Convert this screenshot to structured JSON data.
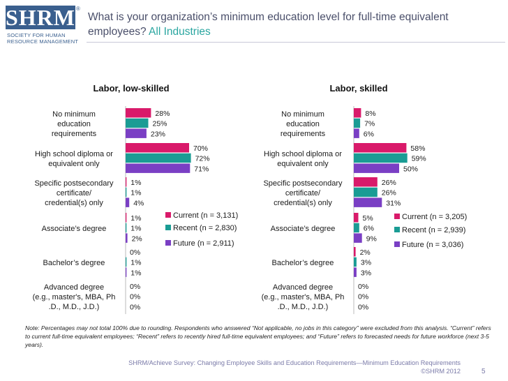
{
  "logo": {
    "text": "SHRM",
    "registered": "®",
    "subtitle_line1": "Society for Human",
    "subtitle_line2": "Resource Management"
  },
  "title": {
    "main": "What is your organization’s minimum education level for full-time equivalent employees?",
    "subtitle": "All Industries"
  },
  "colors": {
    "current": "#d91a6a",
    "recent": "#1a9c94",
    "future": "#7a3fc4"
  },
  "chart_data": [
    {
      "type": "bar",
      "orientation": "horizontal",
      "title": "Labor, low-skilled",
      "categories": [
        "No minimum education requirements",
        "High school diploma or equivalent only",
        "Specific postsecondary certificate/ credential(s) only",
        "Associate’s degree",
        "Bachelor’s degree",
        "Advanced degree (e.g., master's, MBA, Ph.D., M.D., J.D.)"
      ],
      "category_lines": [
        [
          "No minimum",
          "education",
          "requirements"
        ],
        [
          "High school diploma or",
          "equivalent only"
        ],
        [
          "Specific postsecondary",
          "certificate/",
          "credential(s) only"
        ],
        [
          "Associate’s degree"
        ],
        [
          "Bachelor’s degree"
        ],
        [
          "Advanced degree",
          "(e.g., master's, MBA, Ph",
          ".D., M.D., J.D.)"
        ]
      ],
      "series": [
        {
          "name": "Current (n = 3,131)",
          "color": "#d91a6a",
          "values": [
            28,
            70,
            1,
            1,
            0,
            0
          ],
          "labels": [
            "28%",
            "70%",
            "1%",
            "1%",
            "0%",
            "0%"
          ]
        },
        {
          "name": "Recent (n = 2,830)",
          "color": "#1a9c94",
          "values": [
            25,
            72,
            1,
            1,
            1,
            0
          ],
          "labels": [
            "25%",
            "72%",
            "1%",
            "1%",
            "1%",
            "0%"
          ]
        },
        {
          "name": "Future (n = 2,911)",
          "color": "#7a3fc4",
          "values": [
            23,
            71,
            4,
            2,
            1,
            0
          ],
          "labels": [
            "23%",
            "71%",
            "4%",
            "2%",
            "1%",
            "0%"
          ]
        }
      ],
      "xlim": [
        0,
        100
      ]
    },
    {
      "type": "bar",
      "orientation": "horizontal",
      "title": "Labor, skilled",
      "categories": [
        "No minimum education requirements",
        "High school diploma or equivalent only",
        "Specific postsecondary certificate/ credential(s) only",
        "Associate’s degree",
        "Bachelor’s degree",
        "Advanced degree (e.g., master's, MBA, Ph.D., M.D., J.D.)"
      ],
      "category_lines": [
        [
          "No minimum",
          "education",
          "requirements"
        ],
        [
          "High school diploma or",
          "equivalent only"
        ],
        [
          "Specific postsecondary",
          "certificate/",
          "credential(s) only"
        ],
        [
          "Associate’s degree"
        ],
        [
          "Bachelor’s degree"
        ],
        [
          "Advanced degree",
          "(e.g., master's, MBA, Ph",
          ".D., M.D., J.D.)"
        ]
      ],
      "series": [
        {
          "name": "Current (n = 3,205)",
          "color": "#d91a6a",
          "values": [
            8,
            58,
            26,
            5,
            2,
            0
          ],
          "labels": [
            "8%",
            "58%",
            "26%",
            "5%",
            "2%",
            "0%"
          ]
        },
        {
          "name": "Recent (n = 2,939)",
          "color": "#1a9c94",
          "values": [
            7,
            59,
            26,
            6,
            3,
            0
          ],
          "labels": [
            "7%",
            "59%",
            "26%",
            "6%",
            "3%",
            "0%"
          ]
        },
        {
          "name": "Future (n = 3,036)",
          "color": "#7a3fc4",
          "values": [
            6,
            50,
            31,
            9,
            3,
            0
          ],
          "labels": [
            "6%",
            "50%",
            "31%",
            "9%",
            "3%",
            "0%"
          ]
        }
      ],
      "xlim": [
        0,
        100
      ]
    }
  ],
  "note": "Note: Percentages may not total 100% due to rounding. Respondents who answered “Not applicable, no jobs in this category” were excluded from this analysis. “Current” refers to current full-time equivalent employees; “Recent” refers to recently hired full-time equivalent employees; and “Future” refers to forecasted needs for future workforce (next 3-5 years).",
  "footer": {
    "source": "SHRM/Achieve Survey: Changing Employee Skills and Education Requirements—Minimum Education Requirements",
    "copyright": "©SHRM 2012",
    "page": "5"
  }
}
